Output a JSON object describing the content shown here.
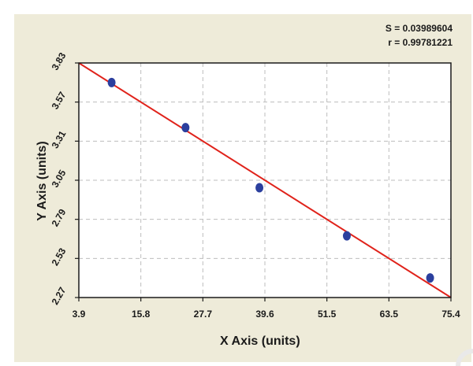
{
  "stats": {
    "s_label": "S = 0.03989604",
    "r_label": "r = 0.99781221"
  },
  "chart_data": {
    "type": "scatter",
    "title": "",
    "xlabel": "X Axis (units)",
    "ylabel": "Y Axis (units)",
    "xlim": [
      3.9,
      75.4
    ],
    "ylim": [
      2.27,
      3.83
    ],
    "x_ticks": [
      "3.9",
      "15.8",
      "27.7",
      "39.6",
      "51.5",
      "63.5",
      "75.4"
    ],
    "y_ticks": [
      "2.27",
      "2.53",
      "2.79",
      "3.05",
      "3.31",
      "3.57",
      "3.83"
    ],
    "grid": true,
    "points": [
      {
        "x": 10.2,
        "y": 3.7
      },
      {
        "x": 24.4,
        "y": 3.4
      },
      {
        "x": 38.6,
        "y": 3.0
      },
      {
        "x": 55.4,
        "y": 2.68
      },
      {
        "x": 71.4,
        "y": 2.4
      }
    ],
    "fit_line": {
      "x": [
        3.9,
        75.4
      ],
      "y": [
        3.83,
        2.27
      ]
    },
    "colors": {
      "background": "#eeebd9",
      "plot_area": "#ffffff",
      "grid": "#bdbdbd",
      "points": "#2b3f9e",
      "line": "#e0231b"
    }
  }
}
